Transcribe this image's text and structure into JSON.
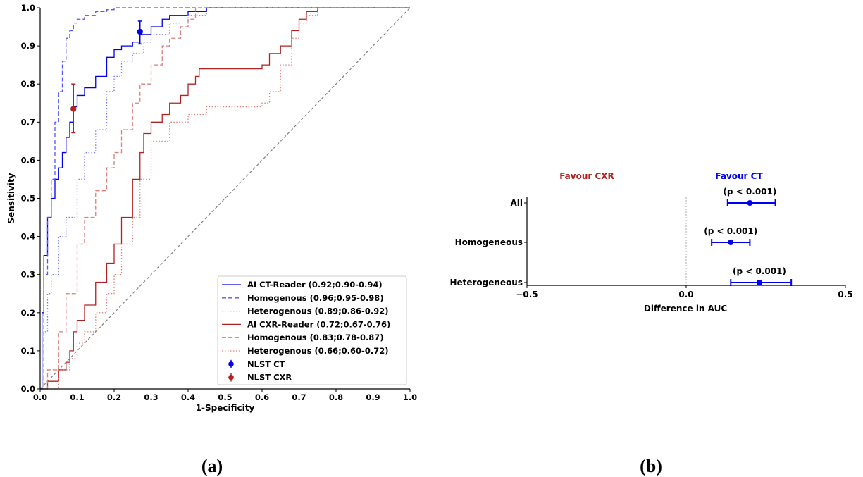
{
  "panel_labels": [
    "(a)",
    "(b)"
  ],
  "chart_data": [
    {
      "type": "line",
      "panel": "(a)",
      "title": "",
      "xlabel": "1-Specificity",
      "ylabel": "Sensitivity",
      "xlim": [
        0,
        1
      ],
      "ylim": [
        0,
        1
      ],
      "xticks": [
        "0.0",
        "0.1",
        "0.2",
        "0.3",
        "0.4",
        "0.5",
        "0.6",
        "0.7",
        "0.8",
        "0.9",
        "1.0"
      ],
      "yticks": [
        "0.0",
        "0.1",
        "0.2",
        "0.3",
        "0.4",
        "0.5",
        "0.6",
        "0.7",
        "0.8",
        "0.9",
        "1.0"
      ],
      "grid": false,
      "legend_position": "bottom-right",
      "diagonal_color": "#808080",
      "series": [
        {
          "name": "AI CT-Reader (0.92;0.90-0.94)",
          "color": "#0000ee",
          "dash": "solid",
          "x": [
            0,
            0.005,
            0.01,
            0.02,
            0.03,
            0.04,
            0.05,
            0.06,
            0.07,
            0.08,
            0.09,
            0.1,
            0.12,
            0.15,
            0.18,
            0.2,
            0.22,
            0.25,
            0.27,
            0.3,
            0.33,
            0.35,
            0.4,
            0.45,
            0.5,
            0.6,
            0.7,
            0.8,
            0.9,
            1.0
          ],
          "y": [
            0,
            0.2,
            0.35,
            0.45,
            0.5,
            0.55,
            0.58,
            0.62,
            0.66,
            0.7,
            0.74,
            0.77,
            0.79,
            0.82,
            0.87,
            0.89,
            0.9,
            0.91,
            0.93,
            0.95,
            0.97,
            0.98,
            0.99,
            1.0,
            1.0,
            1.0,
            1.0,
            1.0,
            1.0,
            1.0
          ]
        },
        {
          "name": "Homogenous (0.96;0.95-0.98)",
          "color": "#5555ff",
          "dash": "dashed",
          "x": [
            0,
            0.01,
            0.02,
            0.03,
            0.04,
            0.05,
            0.06,
            0.07,
            0.08,
            0.09,
            0.1,
            0.12,
            0.15,
            0.18,
            0.2,
            0.25,
            0.3,
            1.0
          ],
          "y": [
            0,
            0.3,
            0.45,
            0.55,
            0.7,
            0.78,
            0.86,
            0.92,
            0.94,
            0.96,
            0.97,
            0.98,
            0.99,
            0.995,
            1.0,
            1.0,
            1.0,
            1.0
          ]
        },
        {
          "name": "Heterogenous (0.89;0.86-0.92)",
          "color": "#7777ff",
          "dash": "dotted",
          "x": [
            0,
            0.01,
            0.02,
            0.03,
            0.05,
            0.07,
            0.1,
            0.12,
            0.15,
            0.18,
            0.2,
            0.22,
            0.25,
            0.28,
            0.3,
            0.35,
            0.4,
            0.45,
            0.5,
            1.0
          ],
          "y": [
            0,
            0.15,
            0.25,
            0.3,
            0.4,
            0.45,
            0.55,
            0.62,
            0.68,
            0.78,
            0.82,
            0.86,
            0.88,
            0.91,
            0.93,
            0.96,
            0.98,
            1.0,
            1.0,
            1.0
          ]
        },
        {
          "name": "AI CXR-Reader (0.72;0.67-0.76)",
          "color": "#b22222",
          "dash": "solid",
          "x": [
            0,
            0.02,
            0.05,
            0.07,
            0.08,
            0.09,
            0.1,
            0.12,
            0.15,
            0.18,
            0.2,
            0.22,
            0.25,
            0.27,
            0.28,
            0.3,
            0.33,
            0.35,
            0.38,
            0.4,
            0.42,
            0.43,
            0.45,
            0.5,
            0.55,
            0.6,
            0.62,
            0.65,
            0.68,
            0.7,
            0.72,
            0.75,
            1.0
          ],
          "y": [
            0,
            0.02,
            0.05,
            0.07,
            0.1,
            0.15,
            0.18,
            0.22,
            0.28,
            0.33,
            0.38,
            0.45,
            0.55,
            0.62,
            0.67,
            0.7,
            0.72,
            0.75,
            0.77,
            0.8,
            0.82,
            0.84,
            0.84,
            0.84,
            0.84,
            0.85,
            0.88,
            0.9,
            0.94,
            0.97,
            0.99,
            1.0,
            1.0
          ]
        },
        {
          "name": "Homogenous (0.83;0.78-0.87)",
          "color": "#d98080",
          "dash": "dashed",
          "x": [
            0,
            0.02,
            0.05,
            0.07,
            0.1,
            0.12,
            0.15,
            0.18,
            0.2,
            0.22,
            0.25,
            0.27,
            0.3,
            0.33,
            0.35,
            0.38,
            0.4,
            0.42,
            1.0
          ],
          "y": [
            0,
            0.05,
            0.15,
            0.25,
            0.38,
            0.45,
            0.52,
            0.58,
            0.62,
            0.68,
            0.75,
            0.8,
            0.85,
            0.9,
            0.92,
            0.95,
            0.97,
            1.0,
            1.0
          ]
        },
        {
          "name": "Heterogenous (0.66;0.60-0.72)",
          "color": "#e08080",
          "dash": "dotted",
          "x": [
            0,
            0.05,
            0.08,
            0.1,
            0.12,
            0.15,
            0.18,
            0.2,
            0.22,
            0.25,
            0.27,
            0.3,
            0.35,
            0.4,
            0.45,
            0.5,
            0.55,
            0.6,
            0.62,
            0.65,
            0.68,
            0.7,
            0.72,
            0.75,
            1.0
          ],
          "y": [
            0,
            0.05,
            0.08,
            0.12,
            0.15,
            0.2,
            0.25,
            0.3,
            0.38,
            0.45,
            0.55,
            0.65,
            0.7,
            0.72,
            0.74,
            0.74,
            0.74,
            0.75,
            0.78,
            0.85,
            0.92,
            0.96,
            0.98,
            1.0,
            1.0
          ]
        }
      ],
      "points": [
        {
          "name": "NLST CT",
          "color": "#0000ee",
          "x": 0.27,
          "y": 0.937,
          "yerr": [
            0.905,
            0.965
          ]
        },
        {
          "name": "NLST CXR",
          "color": "#b22222",
          "x": 0.09,
          "y": 0.735,
          "yerr": [
            0.672,
            0.8
          ]
        }
      ]
    },
    {
      "type": "scatter",
      "panel": "(b)",
      "title": "",
      "xlabel": "Difference in AUC",
      "xlim": [
        -0.5,
        0.5
      ],
      "xticks": [
        "−0.5",
        "0.0",
        "0.5"
      ],
      "categories": [
        "All",
        "Homogeneous",
        "Heterogeneous"
      ],
      "values": [
        0.2,
        0.14,
        0.23
      ],
      "ci_low": [
        0.13,
        0.08,
        0.14
      ],
      "ci_high": [
        0.28,
        0.2,
        0.33
      ],
      "annotations": [
        "(p < 0.001)",
        "(p < 0.001)",
        "(p < 0.001)"
      ],
      "left_label": "Favour CXR",
      "right_label": "Favour CT",
      "left_color": "#b22222",
      "right_color": "#0000ee",
      "point_color": "#0000ee"
    }
  ]
}
